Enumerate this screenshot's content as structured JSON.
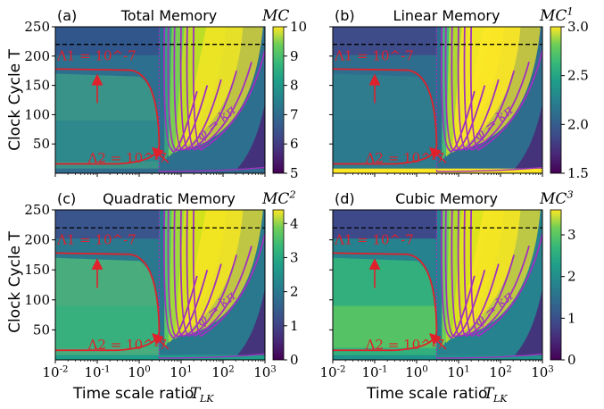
{
  "figure": {
    "ylabel": "Clock Cycle T",
    "xlabel": "Time scale ratio T_LK",
    "x_ticks": [
      "10^-2",
      "10^-1",
      "10^0",
      "10^1",
      "10^2",
      "10^3"
    ],
    "y_ticks": [
      "50",
      "100",
      "150",
      "200",
      "250"
    ],
    "annotations": {
      "lambda1": "Λ1 = 10^-7",
      "lambda2": "Λ2 = 10^-7",
      "phi": "φ = kπ"
    },
    "colors": {
      "contour": "#e0202a",
      "phase": "#a030c0",
      "arrow": "#e0202a",
      "dashed": "#000000"
    }
  },
  "chart_data": [
    {
      "type": "heatmap",
      "panel_label": "(a)",
      "title": "Total Memory",
      "colorbar_label": "MC",
      "colorbar_ticks": [
        "5",
        "6",
        "7",
        "8",
        "9",
        "10"
      ],
      "clim": [
        5,
        10
      ],
      "xscale": "log",
      "xlim": [
        0.01,
        1000
      ],
      "ylim": [
        0,
        250
      ],
      "hline_y": 220,
      "vline_x": 3
    },
    {
      "type": "heatmap",
      "panel_label": "(b)",
      "title": "Linear Memory",
      "colorbar_label": "MC^1",
      "colorbar_ticks": [
        "1.5",
        "2.0",
        "2.5",
        "3.0"
      ],
      "clim": [
        1.5,
        3.0
      ],
      "xscale": "log",
      "xlim": [
        0.01,
        1000
      ],
      "ylim": [
        0,
        250
      ],
      "hline_y": 220,
      "vline_x": 3
    },
    {
      "type": "heatmap",
      "panel_label": "(c)",
      "title": "Quadratic Memory",
      "colorbar_label": "MC^2",
      "colorbar_ticks": [
        "0",
        "1",
        "2",
        "3",
        "4"
      ],
      "clim": [
        0,
        4.4
      ],
      "xscale": "log",
      "xlim": [
        0.01,
        1000
      ],
      "ylim": [
        0,
        250
      ],
      "hline_y": 220,
      "vline_x": 3
    },
    {
      "type": "heatmap",
      "panel_label": "(d)",
      "title": "Cubic Memory",
      "colorbar_label": "MC^3",
      "colorbar_ticks": [
        "0",
        "1",
        "2",
        "3"
      ],
      "clim": [
        0,
        3.6
      ],
      "xscale": "log",
      "xlim": [
        0.01,
        1000
      ],
      "ylim": [
        0,
        250
      ],
      "hline_y": 220,
      "vline_x": 3
    }
  ]
}
